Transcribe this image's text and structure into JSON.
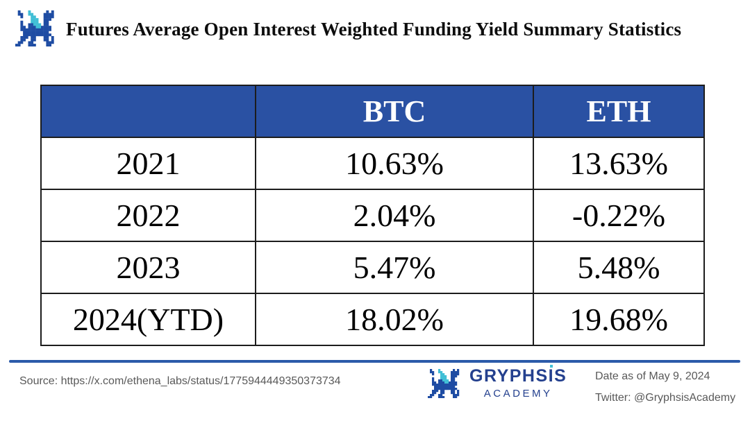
{
  "header": {
    "title": "Futures Average Open Interest Weighted Funding Yield Summary Statistics"
  },
  "table": {
    "columns": [
      "",
      "BTC",
      "ETH"
    ],
    "rows": [
      [
        "2021",
        "10.63%",
        "13.63%"
      ],
      [
        "2022",
        "2.04%",
        "-0.22%"
      ],
      [
        "2023",
        "5.47%",
        "5.48%"
      ],
      [
        "2024(YTD)",
        "18.02%",
        "19.68%"
      ]
    ]
  },
  "footer": {
    "source": "Source: https://x.com/ethena_labs/status/1775944449350373734",
    "brand": {
      "name": "GRYPHSIS",
      "name_pre": "GRYPHS",
      "name_i": "I",
      "name_post": "S",
      "subtitle": "ACADEMY"
    },
    "date": "Date as of May 9, 2024",
    "twitter": "Twitter: @GryphsisAcademy"
  },
  "logo": {
    "grid": [
      ".b...t......b.b.",
      ".bb..tt....bbbb.",
      "..b...tt...bbbb.",
      "......ttt..bbb..",
      "..b...ttt..bb...",
      "..b..bbttt.bb...",
      "..bb.bbbttbbbb..",
      "..bbbbbbbbbbbb..",
      "...bbbbbbbbbb...",
      "...bbbbbbbbbbb..",
      "..bbb.bb...bb.b.",
      "..bb..bb...bb.b.",
      ".bb..bb.....bbb.",
      "bb...bbb....bb.."
    ],
    "blue": "#1e4ca3",
    "teal": "#41bfd6"
  },
  "colors": {
    "header_blue": "#2a51a3",
    "table_border": "#1c1c1c",
    "rule_blue": "#2b5aa9",
    "footer_gray": "#595959",
    "brand_navy": "#24408e",
    "title_black": "#0d0d0d",
    "header_text_white": "#ffffff"
  },
  "chart_data": {
    "type": "table",
    "title": "Futures Average Open Interest Weighted Funding Yield Summary Statistics",
    "categories": [
      "2021",
      "2022",
      "2023",
      "2024(YTD)"
    ],
    "series": [
      {
        "name": "BTC",
        "unit": "%",
        "values": [
          10.63,
          2.04,
          5.47,
          18.02
        ]
      },
      {
        "name": "ETH",
        "unit": "%",
        "values": [
          13.63,
          -0.22,
          5.48,
          19.68
        ]
      }
    ]
  }
}
